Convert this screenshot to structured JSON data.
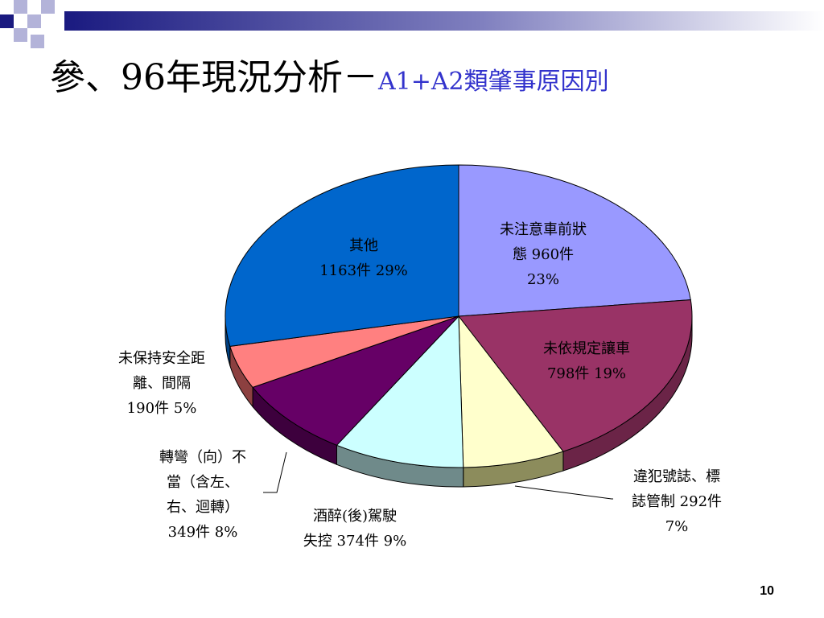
{
  "slide": {
    "title_main": "參、96年現況分析－",
    "title_sub": "A1+A2類肇事原因別",
    "page_number": "10"
  },
  "colors": {
    "deco_dark": "#1a1a80",
    "deco_light": "#b3b3d9",
    "title_sub": "#3333cc"
  },
  "chart_data": {
    "type": "pie",
    "style": "3d",
    "unit": "件",
    "slices": [
      {
        "label_lines": [
          "未注意車前狀",
          "態 960件",
          "23%"
        ],
        "value": 960,
        "percent": 23,
        "color": "#9999ff",
        "side_color": "#6b6bb3"
      },
      {
        "label_lines": [
          "未依規定讓車",
          "798件 19%"
        ],
        "value": 798,
        "percent": 19,
        "color": "#993366",
        "side_color": "#6b2447"
      },
      {
        "label_lines": [
          "違犯號誌、標",
          "誌管制 292件",
          "7%"
        ],
        "value": 292,
        "percent": 7,
        "color": "#ffffcc",
        "side_color": "#8c8c5c"
      },
      {
        "label_lines": [
          "酒醉(後)駕駛",
          "失控 374件 9%"
        ],
        "value": 374,
        "percent": 9,
        "color": "#ccffff",
        "side_color": "#6f8a8a"
      },
      {
        "label_lines": [
          "轉彎（向）不",
          "當（含左、",
          "右、迴轉）",
          "349件 8%"
        ],
        "value": 349,
        "percent": 8,
        "color": "#660066",
        "side_color": "#3d003d"
      },
      {
        "label_lines": [
          "未保持安全距",
          "離、間隔",
          "190件 5%"
        ],
        "value": 190,
        "percent": 5,
        "color": "#ff8080",
        "side_color": "#8c4040"
      },
      {
        "label_lines": [
          "其他",
          "1163件 29%"
        ],
        "value": 1163,
        "percent": 29,
        "color": "#0066cc",
        "side_color": "#004080"
      }
    ]
  }
}
